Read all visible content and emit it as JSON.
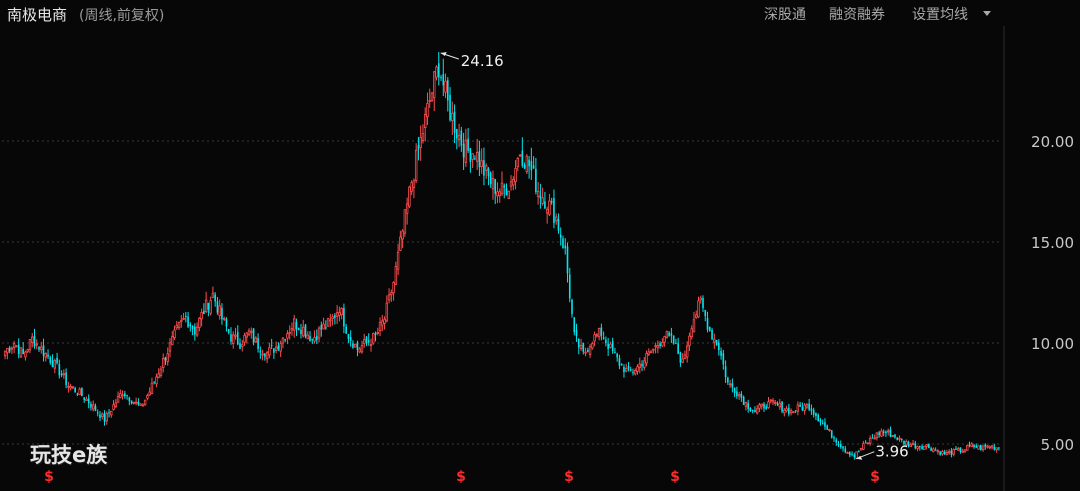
{
  "header": {
    "title": "南极电商",
    "subtitle": "(周线,前复权)",
    "menu": {
      "hk_connect": "深股通",
      "margin": "融资融券",
      "ma_settings": "设置均线"
    }
  },
  "watermark": "玩技e族",
  "colors": {
    "up": "#ff4d4d",
    "down": "#00e5ee",
    "background": "#070707",
    "grid": "#3a3a3a",
    "axis_text": "#c8c8c8",
    "marker": "#ff2a2a"
  },
  "chart_data": {
    "type": "candlestick",
    "title": "",
    "y_ticks": [
      "20.00",
      "15.00",
      "10.00",
      "5.00"
    ],
    "ylim": [
      3.2,
      25.5
    ],
    "grid": true,
    "annotations": {
      "max": "24.16",
      "min": "3.96"
    },
    "dividend_markers": [
      "$",
      "$",
      "$",
      "$",
      "$"
    ],
    "close_path": [
      9.6,
      10.0,
      9.4,
      10.2,
      9.7,
      9.2,
      8.6,
      7.9,
      7.6,
      7.2,
      6.7,
      6.2,
      6.9,
      7.6,
      7.2,
      6.8,
      7.6,
      8.6,
      9.6,
      10.6,
      11.3,
      10.6,
      11.6,
      12.4,
      11.2,
      10.3,
      10.0,
      10.5,
      9.9,
      9.5,
      9.8,
      10.4,
      11.0,
      10.7,
      10.2,
      10.7,
      11.0,
      11.8,
      10.4,
      9.7,
      10.0,
      10.3,
      11.2,
      13.0,
      15.5,
      18.0,
      20.0,
      22.0,
      23.8,
      21.8,
      20.5,
      19.5,
      19.5,
      18.5,
      17.8,
      17.5,
      18.0,
      19.5,
      18.8,
      17.6,
      17.0,
      16.2,
      14.5,
      10.3,
      9.4,
      10.2,
      10.5,
      9.7,
      9.0,
      8.5,
      8.8,
      9.3,
      9.8,
      10.4,
      10.0,
      9.0,
      11.0,
      12.0,
      10.6,
      9.8,
      8.0,
      7.6,
      7.0,
      6.6,
      6.9,
      7.0,
      6.8,
      6.6,
      6.8,
      6.9,
      6.3,
      5.7,
      5.2,
      4.7,
      4.4,
      4.9,
      5.3,
      5.6,
      5.5,
      5.2,
      5.0,
      4.9,
      4.9,
      4.7,
      4.5,
      4.6,
      4.7,
      4.9,
      4.8,
      4.9,
      4.8
    ]
  }
}
